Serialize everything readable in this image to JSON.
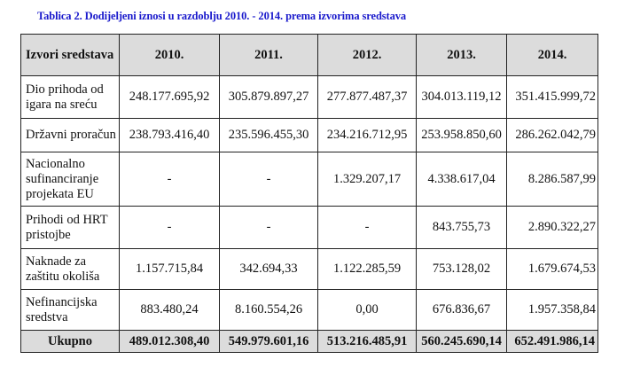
{
  "title": "Tablica 2. Dodijeljeni iznosi u razdoblju 2010. - 2014. prema izvorima sredstava",
  "headers": [
    "Izvori sredstava",
    "2010.",
    "2011.",
    "2012.",
    "2013.",
    "2014."
  ],
  "rows": [
    {
      "label": "Dio prihoda od igara na sreću",
      "values": [
        "248.177.695,92",
        "305.879.897,27",
        "277.877.487,37",
        "304.013.119,12",
        "351.415.999,72"
      ]
    },
    {
      "label": "Državni proračun",
      "values": [
        "238.793.416,40",
        "235.596.455,30",
        "234.216.712,95",
        "253.958.850,60",
        "286.262.042,79"
      ]
    },
    {
      "label": "Nacionalno sufinanciranje projekata EU",
      "values": [
        "-",
        "-",
        "1.329.207,17",
        "4.338.617,04",
        "8.286.587,99"
      ]
    },
    {
      "label": "Prihodi od HRT pristojbe",
      "values": [
        "-",
        "-",
        "-",
        "843.755,73",
        "2.890.322,27"
      ]
    },
    {
      "label": "Naknade za zaštitu okoliša",
      "values": [
        "1.157.715,84",
        "342.694,33",
        "1.122.285,59",
        "753.128,02",
        "1.679.674,53"
      ]
    },
    {
      "label": "Nefinancijska sredstva",
      "values": [
        "883.480,24",
        "8.160.554,26",
        "0,00",
        "676.836,67",
        "1.957.358,84"
      ]
    }
  ],
  "total": {
    "label": "Ukupno",
    "values": [
      "489.012.308,40",
      "549.979.601,16",
      "513.216.485,91",
      "560.245.690,14",
      "652.491.986,14"
    ]
  }
}
